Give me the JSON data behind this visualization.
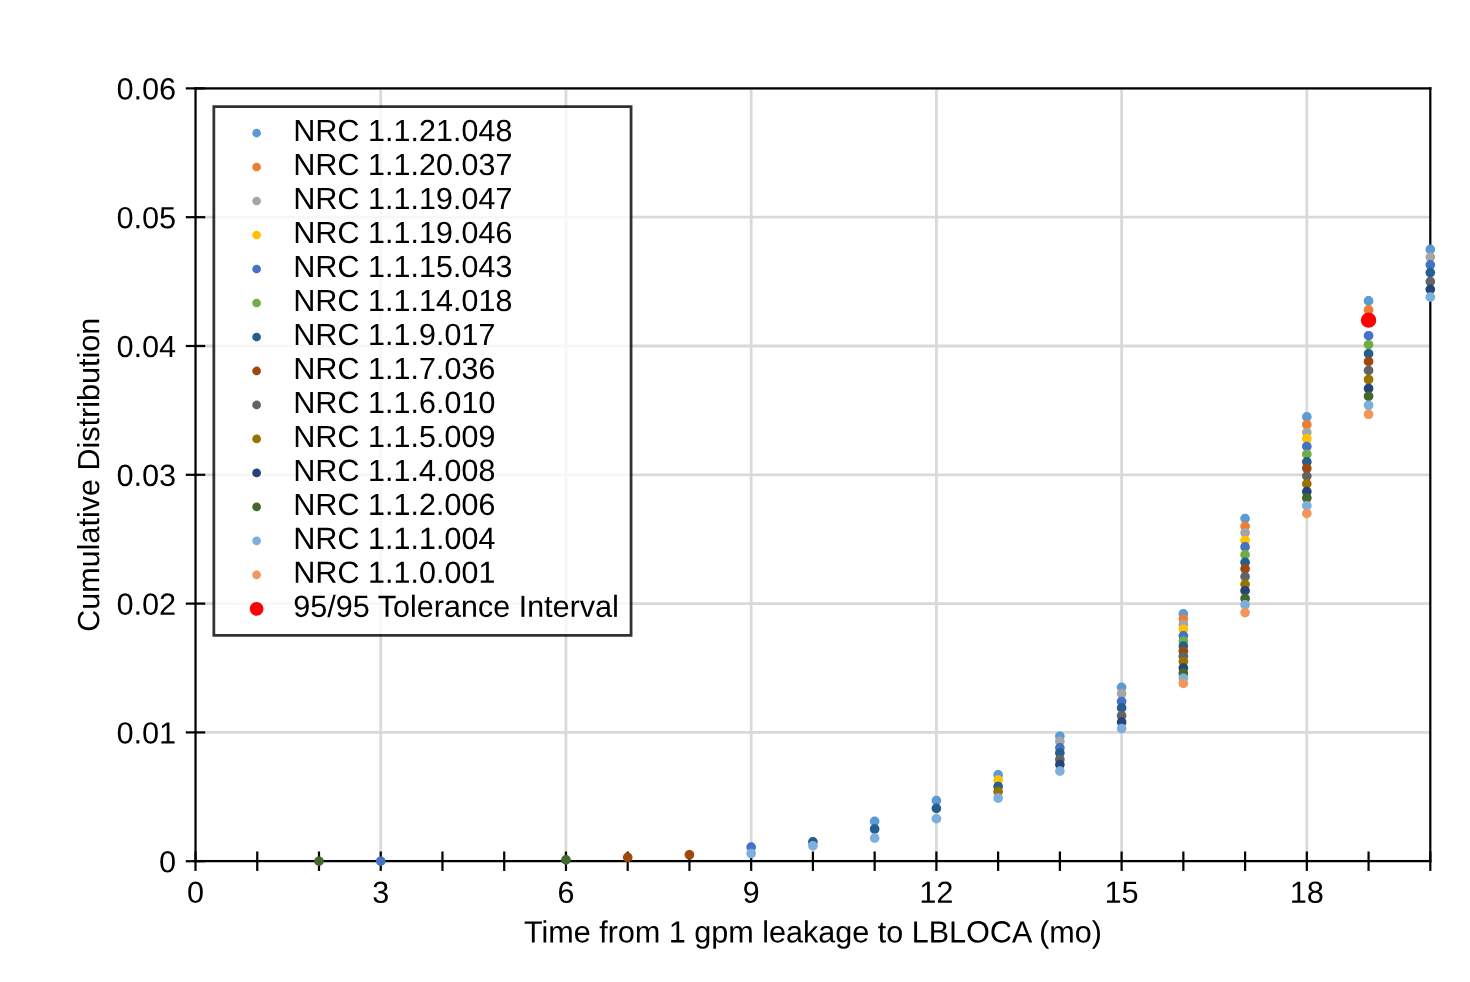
{
  "chart_data": {
    "type": "scatter",
    "xlabel": "Time from 1 gpm leakage to LBLOCA (mo)",
    "ylabel": "Cumulative Distribution",
    "x": [
      2,
      3,
      6,
      7,
      8,
      9,
      10,
      11,
      12,
      13,
      14,
      15,
      16,
      17,
      18,
      19,
      20
    ],
    "series": [
      {
        "name": "NRC 1.1.21.048",
        "color": "#5b9bd5",
        "values": [
          null,
          null,
          null,
          null,
          null,
          null,
          null,
          0.0031,
          0.0047,
          0.0067,
          0.0097,
          0.0135,
          0.0192,
          0.0266,
          0.0345,
          0.0435,
          0.0475
        ]
      },
      {
        "name": "NRC 1.1.20.037",
        "color": "#ed7d31",
        "values": [
          null,
          null,
          null,
          null,
          null,
          null,
          null,
          null,
          null,
          null,
          null,
          null,
          0.0188,
          0.026,
          0.0339,
          0.0428,
          null
        ]
      },
      {
        "name": "NRC 1.1.19.047",
        "color": "#a5a5a5",
        "values": [
          null,
          null,
          null,
          null,
          null,
          null,
          null,
          null,
          null,
          null,
          0.0093,
          0.013,
          0.0184,
          0.0255,
          0.0333,
          null,
          0.0469
        ]
      },
      {
        "name": "NRC 1.1.19.046",
        "color": "#ffc000",
        "values": [
          null,
          null,
          null,
          null,
          null,
          null,
          null,
          null,
          null,
          0.0063,
          null,
          null,
          0.018,
          0.0249,
          0.0328,
          null,
          null
        ]
      },
      {
        "name": "NRC 1.1.15.043",
        "color": "#4472c4",
        "values": [
          null,
          0,
          null,
          null,
          null,
          0.0011,
          null,
          null,
          null,
          null,
          0.0088,
          0.0124,
          0.0175,
          0.0244,
          0.0322,
          0.0408,
          0.0463
        ]
      },
      {
        "name": "NRC 1.1.14.018",
        "color": "#70ad47",
        "values": [
          null,
          null,
          null,
          null,
          null,
          null,
          null,
          null,
          null,
          null,
          null,
          null,
          0.0171,
          0.0238,
          0.0316,
          0.0401,
          null
        ]
      },
      {
        "name": "NRC 1.1.9.017",
        "color": "#255e91",
        "values": [
          null,
          null,
          null,
          null,
          null,
          null,
          0.0015,
          0.0025,
          0.0041,
          0.0058,
          0.0084,
          0.0119,
          0.0167,
          0.0232,
          0.031,
          0.0394,
          0.0457
        ]
      },
      {
        "name": "NRC 1.1.7.036",
        "color": "#9e480e",
        "values": [
          null,
          null,
          null,
          0.0003,
          0.0005,
          null,
          null,
          null,
          null,
          null,
          null,
          null,
          0.0163,
          0.0227,
          0.0305,
          0.0388,
          null
        ]
      },
      {
        "name": "NRC 1.1.6.010",
        "color": "#636363",
        "values": [
          null,
          null,
          null,
          null,
          null,
          null,
          null,
          null,
          null,
          null,
          0.0079,
          0.0113,
          0.0159,
          0.0221,
          0.0299,
          0.0381,
          0.045
        ]
      },
      {
        "name": "NRC 1.1.5.009",
        "color": "#997300",
        "values": [
          null,
          null,
          null,
          null,
          null,
          null,
          null,
          null,
          null,
          0.0054,
          null,
          null,
          0.0155,
          0.0215,
          0.0293,
          0.0374,
          null
        ]
      },
      {
        "name": "NRC 1.1.4.008",
        "color": "#264478",
        "values": [
          null,
          null,
          null,
          null,
          null,
          null,
          null,
          null,
          null,
          null,
          0.0075,
          0.0108,
          0.015,
          0.021,
          0.0287,
          0.0367,
          0.0444
        ]
      },
      {
        "name": "NRC 1.1.2.006",
        "color": "#43682b",
        "values": [
          0,
          null,
          0.0001,
          null,
          null,
          null,
          null,
          null,
          null,
          null,
          null,
          null,
          0.0146,
          0.0204,
          0.0282,
          0.0361,
          null
        ]
      },
      {
        "name": "NRC 1.1.1.004",
        "color": "#7cafdd",
        "values": [
          null,
          null,
          null,
          null,
          null,
          0.0006,
          0.0012,
          0.0018,
          0.0033,
          0.0049,
          0.007,
          0.0103,
          0.0142,
          0.0199,
          0.0276,
          0.0354,
          0.0438
        ]
      },
      {
        "name": "NRC 1.1.0.001",
        "color": "#f1975a",
        "values": [
          null,
          null,
          null,
          null,
          null,
          null,
          null,
          null,
          null,
          null,
          null,
          null,
          0.0138,
          0.0193,
          0.027,
          0.0347,
          null
        ]
      },
      {
        "name": "95/95 Tolerance Interval",
        "color": "#ff0000",
        "x": [
          19
        ],
        "values": [
          0.042
        ]
      }
    ],
    "xlim": [
      0,
      20
    ],
    "xticks": [
      0,
      {
        "value": 1,
        "label": null
      },
      {
        "value": 2,
        "label": null
      },
      3,
      {
        "value": 4,
        "label": null
      },
      {
        "value": 5,
        "label": null
      },
      6,
      {
        "value": 7,
        "label": null
      },
      {
        "value": 8,
        "label": null
      },
      9,
      {
        "value": 10,
        "label": null
      },
      {
        "value": 11,
        "label": null
      },
      12,
      {
        "value": 13,
        "label": null
      },
      {
        "value": 14,
        "label": null
      },
      15,
      {
        "value": 16,
        "label": null
      },
      {
        "value": 17,
        "label": null
      },
      18,
      {
        "value": 19,
        "label": null
      },
      {
        "value": 20,
        "label": null
      }
    ],
    "ylim": [
      0,
      0.06
    ],
    "yticks": [
      0,
      0.01,
      0.02,
      0.03,
      0.04,
      0.05,
      0.06
    ],
    "grid": true,
    "legend": "top left",
    "marker": "circle"
  }
}
